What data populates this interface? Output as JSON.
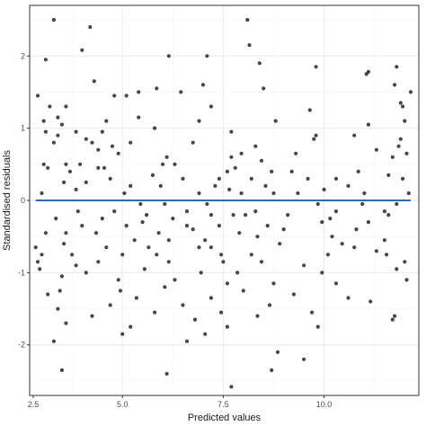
{
  "chart_data": {
    "type": "scatter",
    "title": "",
    "xlabel": "Predicted values",
    "ylabel": "Standardised residuals",
    "xlim": [
      2.7,
      12.35
    ],
    "ylim": [
      -2.7,
      2.7
    ],
    "x_ticks": [
      2.5,
      5.0,
      7.5,
      10.0
    ],
    "x_tick_labels": [
      "2.5",
      "5.0",
      "7.5",
      "10.0"
    ],
    "y_ticks": [
      -2,
      -1,
      0,
      1,
      2
    ],
    "y_tick_labels": [
      "-2",
      "-1",
      "0",
      "1",
      "2"
    ],
    "grid": true,
    "legend": "none",
    "colors": {
      "points": "#262626",
      "fit_line": "#3366b3",
      "panel_border": "#333333",
      "grid_major": "#ebebeb",
      "grid_minor": "#f5f5f5"
    },
    "fit_line": {
      "x": [
        2.85,
        12.15
      ],
      "y": [
        0,
        0
      ]
    },
    "points": [
      [
        3.3,
        2.5
      ],
      [
        8.1,
        2.5
      ],
      [
        4.2,
        2.4
      ],
      [
        8.15,
        2.15
      ],
      [
        4.0,
        2.08
      ],
      [
        6.15,
        2.0
      ],
      [
        7.1,
        2.0
      ],
      [
        4.3,
        1.65
      ],
      [
        7.0,
        1.6
      ],
      [
        3.1,
        1.95
      ],
      [
        9.8,
        1.85
      ],
      [
        11.1,
        1.78
      ],
      [
        11.05,
        1.75
      ],
      [
        8.4,
        1.9
      ],
      [
        8.5,
        1.55
      ],
      [
        11.8,
        1.85
      ],
      [
        12.15,
        1.5
      ],
      [
        5.4,
        1.5
      ],
      [
        2.9,
        1.45
      ],
      [
        4.8,
        1.45
      ],
      [
        5.1,
        1.45
      ],
      [
        5.85,
        1.55
      ],
      [
        6.45,
        1.5
      ],
      [
        7.2,
        1.3
      ],
      [
        3.6,
        1.3
      ],
      [
        3.2,
        1.3
      ],
      [
        9.65,
        1.25
      ],
      [
        11.95,
        1.3
      ],
      [
        11.75,
        1.6
      ],
      [
        11.9,
        1.35
      ],
      [
        3.05,
        1.1
      ],
      [
        3.4,
        1.15
      ],
      [
        3.5,
        1.05
      ],
      [
        4.6,
        1.1
      ],
      [
        5.4,
        1.15
      ],
      [
        6.9,
        1.1
      ],
      [
        8.8,
        1.1
      ],
      [
        11.1,
        1.05
      ],
      [
        12.0,
        1.1
      ],
      [
        3.1,
        0.95
      ],
      [
        3.4,
        0.9
      ],
      [
        3.85,
        0.95
      ],
      [
        4.5,
        0.95
      ],
      [
        5.8,
        1.0
      ],
      [
        7.7,
        0.95
      ],
      [
        9.8,
        0.9
      ],
      [
        10.75,
        0.9
      ],
      [
        11.9,
        0.85
      ],
      [
        3.3,
        0.8
      ],
      [
        4.1,
        0.85
      ],
      [
        4.25,
        0.8
      ],
      [
        4.75,
        0.75
      ],
      [
        5.2,
        0.8
      ],
      [
        6.75,
        0.8
      ],
      [
        8.3,
        0.75
      ],
      [
        9.75,
        0.85
      ],
      [
        11.85,
        0.75
      ],
      [
        4.4,
        0.7
      ],
      [
        4.9,
        0.65
      ],
      [
        6.1,
        0.6
      ],
      [
        7.95,
        0.65
      ],
      [
        8.45,
        0.55
      ],
      [
        9.3,
        0.65
      ],
      [
        11.3,
        0.7
      ],
      [
        11.7,
        0.6
      ],
      [
        12.05,
        0.65
      ],
      [
        3.05,
        0.5
      ],
      [
        3.6,
        0.5
      ],
      [
        3.95,
        0.5
      ],
      [
        4.4,
        0.45
      ],
      [
        4.55,
        0.45
      ],
      [
        6.0,
        0.5
      ],
      [
        6.3,
        0.5
      ],
      [
        7.7,
        0.6
      ],
      [
        7.8,
        0.45
      ],
      [
        8.7,
        0.4
      ],
      [
        9.2,
        0.4
      ],
      [
        10.85,
        0.4
      ],
      [
        11.6,
        0.35
      ],
      [
        3.15,
        0.45
      ],
      [
        3.7,
        0.4
      ],
      [
        4.7,
        0.3
      ],
      [
        5.75,
        0.35
      ],
      [
        6.5,
        0.3
      ],
      [
        7.4,
        0.3
      ],
      [
        7.6,
        0.4
      ],
      [
        8.2,
        0.3
      ],
      [
        9.6,
        0.3
      ],
      [
        10.3,
        0.3
      ],
      [
        11.95,
        0.3
      ],
      [
        3.55,
        0.25
      ],
      [
        4.1,
        0.25
      ],
      [
        5.2,
        0.2
      ],
      [
        5.95,
        0.2
      ],
      [
        7.3,
        0.2
      ],
      [
        7.65,
        0.15
      ],
      [
        8.55,
        0.2
      ],
      [
        10.0,
        0.15
      ],
      [
        10.6,
        0.2
      ],
      [
        3.0,
        0.1
      ],
      [
        3.85,
        0.15
      ],
      [
        5.05,
        0.1
      ],
      [
        6.9,
        0.1
      ],
      [
        7.95,
        0.1
      ],
      [
        8.75,
        0.1
      ],
      [
        9.35,
        0.1
      ],
      [
        11.0,
        0.1
      ],
      [
        12.1,
        0.1
      ],
      [
        5.45,
        -0.05
      ],
      [
        6.05,
        -0.05
      ],
      [
        7.1,
        -0.05
      ],
      [
        9.85,
        -0.05
      ],
      [
        10.95,
        -0.05
      ],
      [
        11.8,
        -0.05
      ],
      [
        3.9,
        -0.15
      ],
      [
        4.8,
        -0.15
      ],
      [
        6.6,
        -0.15
      ],
      [
        8.3,
        -0.15
      ],
      [
        10.3,
        -0.15
      ],
      [
        11.5,
        -0.15
      ],
      [
        3.35,
        -0.25
      ],
      [
        4.5,
        -0.25
      ],
      [
        5.6,
        -0.2
      ],
      [
        6.25,
        -0.25
      ],
      [
        7.2,
        -0.2
      ],
      [
        7.75,
        -0.2
      ],
      [
        8.05,
        -0.2
      ],
      [
        9.1,
        -0.2
      ],
      [
        10.15,
        -0.25
      ],
      [
        11.6,
        -0.2
      ],
      [
        4.0,
        -0.35
      ],
      [
        5.1,
        -0.35
      ],
      [
        5.5,
        -0.3
      ],
      [
        6.6,
        -0.35
      ],
      [
        7.4,
        -0.35
      ],
      [
        8.6,
        -0.35
      ],
      [
        9.95,
        -0.3
      ],
      [
        11.1,
        -0.3
      ],
      [
        3.1,
        -0.45
      ],
      [
        3.6,
        -0.45
      ],
      [
        4.35,
        -0.45
      ],
      [
        5.9,
        -0.45
      ],
      [
        6.75,
        -0.4
      ],
      [
        7.9,
        -0.45
      ],
      [
        9.0,
        -0.4
      ],
      [
        10.8,
        -0.4
      ],
      [
        5.3,
        -0.55
      ],
      [
        6.15,
        -0.55
      ],
      [
        7.05,
        -0.55
      ],
      [
        8.35,
        -0.5
      ],
      [
        10.2,
        -0.5
      ],
      [
        11.5,
        -0.55
      ],
      [
        2.85,
        -0.65
      ],
      [
        3.55,
        -0.6
      ],
      [
        4.6,
        -0.65
      ],
      [
        5.65,
        -0.65
      ],
      [
        6.9,
        -0.65
      ],
      [
        7.2,
        -0.65
      ],
      [
        8.9,
        -0.6
      ],
      [
        10.45,
        -0.6
      ],
      [
        10.75,
        -0.65
      ],
      [
        3.0,
        -0.75
      ],
      [
        3.75,
        -0.75
      ],
      [
        5.0,
        -0.75
      ],
      [
        5.85,
        -0.75
      ],
      [
        7.45,
        -0.75
      ],
      [
        8.2,
        -0.75
      ],
      [
        10.1,
        -0.75
      ],
      [
        11.3,
        -0.7
      ],
      [
        11.55,
        -0.75
      ],
      [
        2.9,
        -0.85
      ],
      [
        3.85,
        -0.9
      ],
      [
        4.4,
        -0.85
      ],
      [
        6.15,
        -0.85
      ],
      [
        7.5,
        -0.85
      ],
      [
        8.45,
        -0.85
      ],
      [
        9.5,
        -0.9
      ],
      [
        12.0,
        -0.85
      ],
      [
        2.95,
        -0.95
      ],
      [
        4.1,
        -1.0
      ],
      [
        5.55,
        -0.95
      ],
      [
        6.95,
        -1.0
      ],
      [
        7.85,
        -1.0
      ],
      [
        9.95,
        -1.0
      ],
      [
        11.8,
        -0.95
      ],
      [
        3.5,
        -1.05
      ],
      [
        4.9,
        -1.1
      ],
      [
        6.3,
        -1.1
      ],
      [
        7.6,
        -1.15
      ],
      [
        8.75,
        -1.15
      ],
      [
        10.3,
        -1.15
      ],
      [
        12.05,
        -1.1
      ],
      [
        3.45,
        -1.25
      ],
      [
        4.95,
        -1.25
      ],
      [
        6.05,
        -1.2
      ],
      [
        8.0,
        -1.25
      ],
      [
        9.25,
        -1.3
      ],
      [
        3.15,
        -1.3
      ],
      [
        5.35,
        -1.35
      ],
      [
        7.2,
        -1.35
      ],
      [
        10.6,
        -1.35
      ],
      [
        11.15,
        -1.4
      ],
      [
        4.7,
        -1.45
      ],
      [
        6.5,
        -1.45
      ],
      [
        8.65,
        -1.45
      ],
      [
        3.4,
        -1.5
      ],
      [
        5.8,
        -1.55
      ],
      [
        7.45,
        -1.55
      ],
      [
        9.7,
        -1.55
      ],
      [
        11.75,
        -1.6
      ],
      [
        4.25,
        -1.6
      ],
      [
        6.8,
        -1.65
      ],
      [
        8.35,
        -1.6
      ],
      [
        11.7,
        -1.65
      ],
      [
        3.6,
        -1.7
      ],
      [
        5.2,
        -1.75
      ],
      [
        7.6,
        -1.75
      ],
      [
        9.85,
        -1.75
      ],
      [
        5.0,
        -1.85
      ],
      [
        7.05,
        -1.85
      ],
      [
        3.3,
        -1.95
      ],
      [
        6.6,
        -1.95
      ],
      [
        8.85,
        -2.1
      ],
      [
        9.5,
        -2.2
      ],
      [
        3.5,
        -2.35
      ],
      [
        6.1,
        -2.4
      ],
      [
        8.7,
        -2.35
      ],
      [
        7.7,
        -2.58
      ]
    ]
  }
}
